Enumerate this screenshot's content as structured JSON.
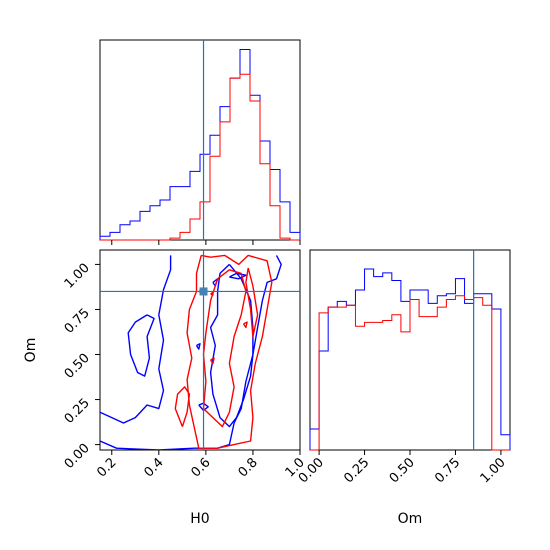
{
  "chart_data": [
    {
      "panel": "H0 marginal",
      "type": "histogram",
      "xlim": [
        0.15,
        1.0
      ],
      "bin_edges": [
        0.15,
        0.1925,
        0.235,
        0.2775,
        0.32,
        0.3625,
        0.405,
        0.4475,
        0.49,
        0.5325,
        0.575,
        0.6175,
        0.66,
        0.7025,
        0.745,
        0.7875,
        0.83,
        0.8725,
        0.915,
        0.9575,
        1.0
      ],
      "truth": 0.59,
      "series": [
        {
          "color": "#0000ff",
          "values": [
            0.02,
            0.04,
            0.08,
            0.1,
            0.15,
            0.18,
            0.21,
            0.28,
            0.28,
            0.36,
            0.45,
            0.55,
            0.7,
            0.85,
            1.0,
            0.76,
            0.52,
            0.37,
            0.2,
            0.04
          ]
        },
        {
          "color": "#ff0000",
          "values": [
            0,
            0,
            0,
            0,
            0,
            0,
            0,
            0.01,
            0.04,
            0.11,
            0.2,
            0.44,
            0.62,
            0.85,
            0.87,
            0.73,
            0.4,
            0.18,
            0.01,
            0
          ]
        }
      ]
    },
    {
      "panel": "H0 vs Om",
      "type": "contour",
      "xlabel": "H0",
      "ylabel": "Om",
      "xlim": [
        0.15,
        1.0
      ],
      "ylim": [
        -0.03,
        1.08
      ],
      "xticks": [
        "0.2",
        "0.4",
        "0.6",
        "0.8",
        "1.0"
      ],
      "yticks": [
        "0.00",
        "0.25",
        "0.50",
        "0.75",
        "1.00"
      ],
      "truth": {
        "x": 0.59,
        "y": 0.85
      },
      "series": [
        {
          "color": "#0000ff",
          "contours": [
            [
              [
                0.15,
                0.18
              ],
              [
                0.2,
                0.15
              ],
              [
                0.25,
                0.12
              ],
              [
                0.3,
                0.15
              ],
              [
                0.35,
                0.22
              ],
              [
                0.4,
                0.2
              ],
              [
                0.42,
                0.3
              ],
              [
                0.4,
                0.42
              ],
              [
                0.42,
                0.58
              ],
              [
                0.4,
                0.72
              ],
              [
                0.42,
                0.86
              ],
              [
                0.45,
                0.97
              ],
              [
                0.45,
                1.05
              ]
            ],
            [
              [
                0.15,
                0.02
              ],
              [
                0.22,
                -0.02
              ],
              [
                0.4,
                -0.03
              ],
              [
                0.55,
                -0.02
              ],
              [
                0.65,
                -0.02
              ],
              [
                0.7,
                0.0
              ],
              [
                0.72,
                0.12
              ],
              [
                0.75,
                0.2
              ],
              [
                0.77,
                0.35
              ],
              [
                0.8,
                0.5
              ],
              [
                0.82,
                0.65
              ],
              [
                0.84,
                0.8
              ],
              [
                0.86,
                0.9
              ],
              [
                0.9,
                0.92
              ],
              [
                0.92,
                1.0
              ],
              [
                0.9,
                1.05
              ]
            ],
            [
              [
                0.7,
                1.0
              ],
              [
                0.75,
                0.92
              ],
              [
                0.79,
                0.8
              ],
              [
                0.8,
                0.65
              ],
              [
                0.8,
                0.5
              ],
              [
                0.79,
                0.38
              ],
              [
                0.76,
                0.25
              ],
              [
                0.73,
                0.15
              ],
              [
                0.7,
                0.1
              ],
              [
                0.66,
                0.15
              ],
              [
                0.63,
                0.28
              ],
              [
                0.62,
                0.4
              ],
              [
                0.64,
                0.55
              ],
              [
                0.62,
                0.65
              ],
              [
                0.65,
                0.72
              ],
              [
                0.65,
                0.85
              ],
              [
                0.66,
                0.95
              ],
              [
                0.7,
                1.0
              ]
            ],
            [
              [
                0.35,
                0.72
              ],
              [
                0.3,
                0.68
              ],
              [
                0.27,
                0.62
              ],
              [
                0.28,
                0.5
              ],
              [
                0.31,
                0.4
              ],
              [
                0.34,
                0.38
              ],
              [
                0.36,
                0.48
              ],
              [
                0.35,
                0.6
              ],
              [
                0.38,
                0.7
              ],
              [
                0.35,
                0.72
              ]
            ],
            [
              [
                0.7,
                0.93
              ],
              [
                0.73,
                0.95
              ],
              [
                0.77,
                0.94
              ],
              [
                0.74,
                0.92
              ],
              [
                0.7,
                0.93
              ]
            ],
            [
              [
                0.57,
                0.22
              ],
              [
                0.59,
                0.19
              ],
              [
                0.61,
                0.21
              ],
              [
                0.59,
                0.23
              ],
              [
                0.57,
                0.22
              ]
            ],
            [
              [
                0.56,
                0.55
              ],
              [
                0.57,
                0.53
              ],
              [
                0.575,
                0.56
              ],
              [
                0.56,
                0.55
              ]
            ],
            [
              [
                0.12,
                0.08
              ],
              [
                0.13,
                0.07
              ],
              [
                0.14,
                0.1
              ],
              [
                0.12,
                0.08
              ]
            ],
            [
              [
                0.63,
                0.9
              ],
              [
                0.64,
                0.88
              ],
              [
                0.65,
                0.92
              ],
              [
                0.63,
                0.9
              ]
            ]
          ]
        },
        {
          "color": "#ff0000",
          "contours": [
            [
              [
                0.58,
                1.05
              ],
              [
                0.56,
                0.95
              ],
              [
                0.56,
                0.85
              ],
              [
                0.53,
                0.75
              ],
              [
                0.52,
                0.62
              ],
              [
                0.54,
                0.48
              ],
              [
                0.52,
                0.36
              ],
              [
                0.53,
                0.22
              ],
              [
                0.55,
                0.1
              ],
              [
                0.57,
                -0.02
              ],
              [
                0.65,
                -0.02
              ],
              [
                0.72,
                0.0
              ],
              [
                0.79,
                0.02
              ],
              [
                0.8,
                0.15
              ],
              [
                0.79,
                0.3
              ],
              [
                0.81,
                0.45
              ],
              [
                0.84,
                0.6
              ],
              [
                0.86,
                0.75
              ],
              [
                0.88,
                0.9
              ],
              [
                0.86,
                1.02
              ],
              [
                0.78,
                1.05
              ],
              [
                0.74,
                1.0
              ],
              [
                0.68,
                1.05
              ],
              [
                0.62,
                1.04
              ],
              [
                0.58,
                1.05
              ]
            ],
            [
              [
                0.65,
                0.92
              ],
              [
                0.62,
                0.8
              ],
              [
                0.6,
                0.62
              ],
              [
                0.59,
                0.5
              ],
              [
                0.6,
                0.35
              ],
              [
                0.59,
                0.2
              ],
              [
                0.63,
                0.15
              ],
              [
                0.67,
                0.1
              ],
              [
                0.7,
                0.18
              ],
              [
                0.72,
                0.32
              ],
              [
                0.7,
                0.45
              ],
              [
                0.72,
                0.6
              ],
              [
                0.75,
                0.72
              ],
              [
                0.77,
                0.85
              ],
              [
                0.75,
                0.95
              ],
              [
                0.7,
                0.97
              ],
              [
                0.65,
                0.92
              ]
            ],
            [
              [
                0.5,
                0.1
              ],
              [
                0.52,
                0.18
              ],
              [
                0.53,
                0.28
              ],
              [
                0.51,
                0.32
              ],
              [
                0.48,
                0.28
              ],
              [
                0.47,
                0.2
              ],
              [
                0.5,
                0.1
              ]
            ],
            [
              [
                0.78,
                0.98
              ],
              [
                0.8,
                0.88
              ],
              [
                0.82,
                0.72
              ],
              [
                0.8,
                0.6
              ],
              [
                0.79,
                0.75
              ],
              [
                0.77,
                0.9
              ],
              [
                0.78,
                0.98
              ]
            ],
            [
              [
                0.57,
                0.85
              ],
              [
                0.6,
                0.83
              ],
              [
                0.59,
                0.86
              ],
              [
                0.57,
                0.85
              ]
            ],
            [
              [
                0.62,
                0.47
              ],
              [
                0.63,
                0.45
              ],
              [
                0.635,
                0.48
              ],
              [
                0.62,
                0.47
              ]
            ],
            [
              [
                0.76,
                0.67
              ],
              [
                0.77,
                0.65
              ],
              [
                0.775,
                0.68
              ],
              [
                0.76,
                0.67
              ]
            ],
            [
              [
                0.62,
                0.835
              ],
              [
                0.63,
                0.83
              ],
              [
                0.63,
                0.845
              ],
              [
                0.62,
                0.835
              ]
            ]
          ]
        }
      ]
    },
    {
      "panel": "Om marginal",
      "type": "histogram",
      "xlabel": "Om",
      "xlim": [
        -0.05,
        1.05
      ],
      "xticks": [
        "0.00",
        "0.25",
        "0.50",
        "0.75",
        "1.00"
      ],
      "bin_edges": [
        -0.05,
        0.0,
        0.05,
        0.1,
        0.15,
        0.2,
        0.25,
        0.3,
        0.35,
        0.4,
        0.45,
        0.5,
        0.55,
        0.6,
        0.65,
        0.7,
        0.75,
        0.8,
        0.85,
        0.9,
        0.95,
        1.0,
        1.05
      ],
      "truth": 0.85,
      "series": [
        {
          "color": "#0000ff",
          "values": [
            0.11,
            0.52,
            0.75,
            0.78,
            0.76,
            0.84,
            0.95,
            0.91,
            0.93,
            0.89,
            0.78,
            0.84,
            0.84,
            0.77,
            0.81,
            0.82,
            0.9,
            0.77,
            0.82,
            0.82,
            0.74,
            0.08
          ]
        },
        {
          "color": "#ff0000",
          "values": [
            0.0,
            0.72,
            0.75,
            0.75,
            0.76,
            0.65,
            0.67,
            0.67,
            0.68,
            0.71,
            0.62,
            0.79,
            0.7,
            0.7,
            0.75,
            0.79,
            0.81,
            0.79,
            0.8,
            0.76,
            0.0,
            0.0
          ]
        }
      ]
    }
  ]
}
